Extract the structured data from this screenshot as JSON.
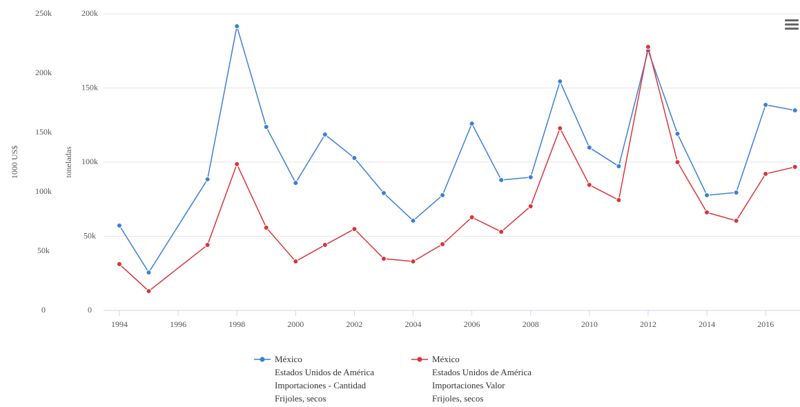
{
  "chart_data": {
    "type": "line",
    "ylabel": "toneladas",
    "y2label": "1000 US$",
    "xlim": [
      1993.46,
      2017.1
    ],
    "xticks": [
      1994,
      1996,
      1998,
      2000,
      2002,
      2004,
      2006,
      2008,
      2010,
      2012,
      2014,
      2016
    ],
    "ylim": [
      0,
      200000
    ],
    "yticks": [
      0,
      {
        "value": 50000,
        "label": "50k"
      },
      {
        "value": 100000,
        "label": "100k"
      },
      {
        "value": 150000,
        "label": "150k"
      },
      {
        "value": 200000,
        "label": "200k"
      }
    ],
    "y2lim": [
      0,
      250000
    ],
    "y2ticks": [
      0,
      {
        "value": 50000,
        "label": "50k"
      },
      {
        "value": 100000,
        "label": "100k"
      },
      {
        "value": 150000,
        "label": "150k"
      },
      {
        "value": 200000,
        "label": "200k"
      },
      {
        "value": 250000,
        "label": "250k"
      }
    ],
    "grid": true,
    "x": [
      1994,
      1995,
      1997,
      1998,
      1999,
      2000,
      2001,
      2002,
      2003,
      2004,
      2005,
      2006,
      2007,
      2008,
      2009,
      2010,
      2011,
      2012,
      2013,
      2014,
      2015,
      2016,
      2017
    ],
    "series": [
      {
        "name": "México\nEstados Unidos de América\nImportaciones - Cantidad\nFrijoles, secos",
        "color": "#3a7fd5",
        "values": [
          57200,
          25600,
          88400,
          191600,
          123700,
          86000,
          118600,
          102800,
          79100,
          60500,
          77700,
          126000,
          87900,
          89800,
          154400,
          109800,
          97200,
          175300,
          119100,
          77700,
          79500,
          138600,
          134900
        ]
      },
      {
        "name": "México\nEstados Unidos de América\nImportaciones Valor\nFrijoles, secos",
        "color": "#d9343a",
        "axis": "y2",
        "values": [
          39000,
          16300,
          55200,
          123300,
          69800,
          41300,
          55200,
          68600,
          43600,
          41300,
          55800,
          78500,
          66300,
          87800,
          153500,
          105800,
          93000,
          222100,
          125000,
          82600,
          75600,
          115100,
          120900
        ]
      }
    ]
  }
}
